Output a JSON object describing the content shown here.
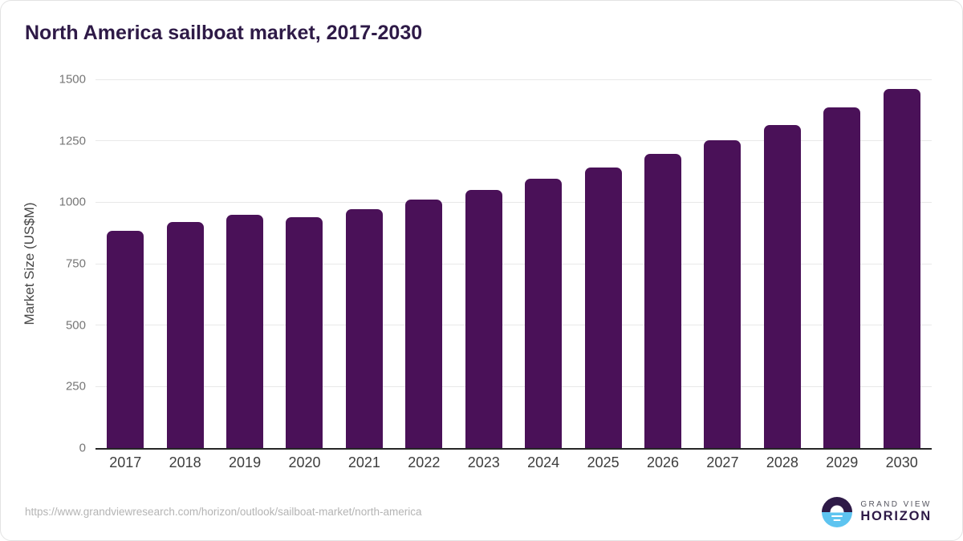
{
  "header": {
    "title": "North America sailboat market, 2017-2030"
  },
  "chart_data": {
    "type": "bar",
    "title": "North America sailboat market, 2017-2030",
    "categories": [
      "2017",
      "2018",
      "2019",
      "2020",
      "2021",
      "2022",
      "2023",
      "2024",
      "2025",
      "2026",
      "2027",
      "2028",
      "2029",
      "2030"
    ],
    "values": [
      885,
      918,
      950,
      938,
      971,
      1010,
      1050,
      1095,
      1141,
      1197,
      1252,
      1315,
      1387,
      1460
    ],
    "xlabel": "",
    "ylabel": "Market Size (US$M)",
    "ylim": [
      0,
      1500
    ],
    "yticks": [
      0,
      250,
      500,
      750,
      1000,
      1250,
      1500
    ],
    "grid": true,
    "legend": "none",
    "bar_color": "#4a1158"
  },
  "footer": {
    "source_url": "https://www.grandviewresearch.com/horizon/outlook/sailboat-market/north-america",
    "logo": {
      "line1": "GRAND VIEW",
      "line2": "HORIZON"
    }
  },
  "colors": {
    "title": "#2e1a47",
    "bar": "#4a1158",
    "grid": "#e8e8e8",
    "axis": "#262626",
    "tick_label": "#767676",
    "logo_purple": "#2e1a47",
    "logo_blue": "#5ec4f0"
  }
}
